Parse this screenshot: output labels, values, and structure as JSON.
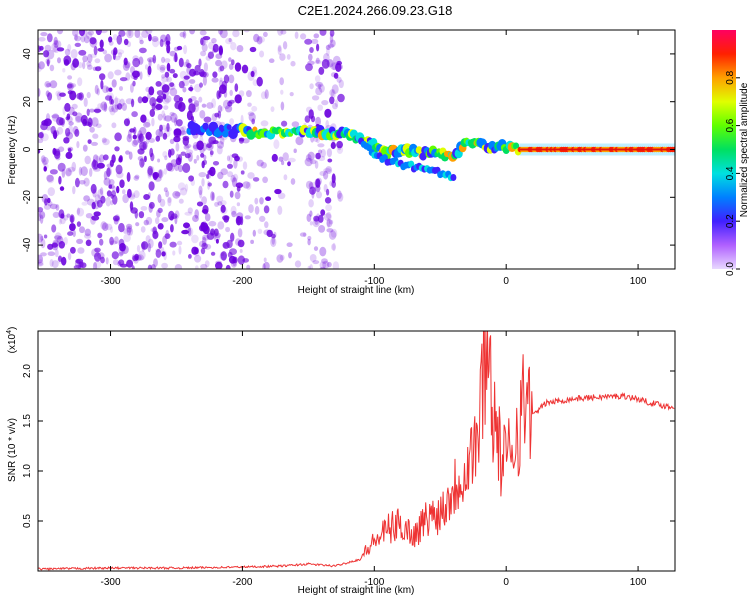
{
  "title": "C2E1.2024.266.09.23.G18",
  "colors": {
    "trace": "#ee3333",
    "axis": "#000000",
    "scatter": "#6a00dd"
  },
  "chart_data": [
    {
      "type": "heatmap",
      "xlabel": "Height of straight line (km)",
      "ylabel": "Frequency (Hz)",
      "xlim": [
        -355,
        128
      ],
      "ylim": [
        -50,
        50
      ],
      "x_ticks": [
        -300,
        -200,
        -100,
        0,
        100
      ],
      "y_ticks": [
        40,
        20,
        0,
        -20,
        -40
      ],
      "colorbar": {
        "label": "Normalized spectral amplitude",
        "range": [
          0,
          1
        ],
        "ticks": [
          "0.0",
          "0.2",
          "0.4",
          "0.6",
          "0.8"
        ]
      },
      "ridge": {
        "x": [
          -240,
          -220,
          -200,
          -180,
          -160,
          -140,
          -125,
          -110,
          -100,
          -90,
          -80,
          -70,
          -60,
          -50,
          -40,
          -30,
          -20,
          -10,
          0,
          10,
          128
        ],
        "y": [
          9,
          8,
          8,
          7,
          7,
          7,
          7,
          5,
          2,
          -1,
          0,
          -1,
          -2,
          -1,
          -3,
          3,
          2,
          1,
          1,
          0,
          0
        ]
      },
      "ridge_lower_branch": {
        "x": [
          -110,
          -95,
          -80,
          -65,
          -55,
          -45,
          -40
        ],
        "y": [
          4,
          -4,
          -6,
          -8,
          -9,
          -11,
          -12
        ]
      }
    },
    {
      "type": "line",
      "xlabel": "Height of straight line (km)",
      "ylabel": "SNR (10 * v/v)",
      "y_multiplier": "(x10",
      "y_multiplier_exp": "4",
      "xlim": [
        -355,
        128
      ],
      "ylim": [
        0,
        2.4
      ],
      "x_ticks": [
        -300,
        -200,
        -100,
        0,
        100
      ],
      "y_ticks": [
        "0.5",
        "1.0",
        "1.5",
        "2.0"
      ],
      "series": [
        {
          "x": [
            -355,
            -300,
            -250,
            -200,
            -170,
            -150,
            -130,
            -110,
            -100,
            -90,
            -80,
            -70,
            -60,
            -50,
            -40,
            -30,
            -20,
            -15,
            -10,
            -5,
            0,
            5,
            10,
            20,
            30,
            50,
            70,
            90,
            100,
            110,
            128
          ],
          "y": [
            0.02,
            0.03,
            0.03,
            0.04,
            0.05,
            0.07,
            0.05,
            0.12,
            0.25,
            0.35,
            0.4,
            0.3,
            0.45,
            0.5,
            0.7,
            0.9,
            1.2,
            2.2,
            1.4,
            1.0,
            0.9,
            1.1,
            1.3,
            1.55,
            1.68,
            1.72,
            1.74,
            1.75,
            1.72,
            1.68,
            1.63
          ]
        }
      ]
    }
  ]
}
